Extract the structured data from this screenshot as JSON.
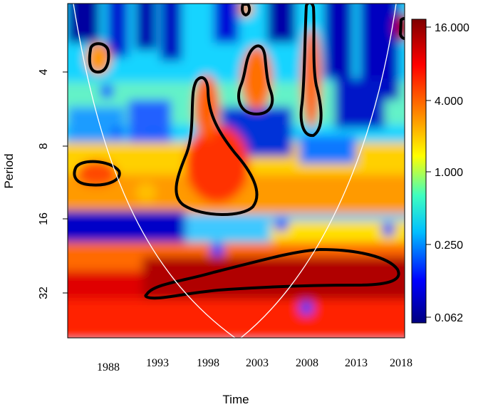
{
  "chart_data": {
    "type": "heatmap",
    "subtype": "wavelet-power-spectrum",
    "xlabel": "Time",
    "ylabel": "Period",
    "x_ticks": [
      "1988",
      "1993",
      "1998",
      "2003",
      "2008",
      "2013",
      "2018"
    ],
    "y_ticks": [
      "4",
      "8",
      "16",
      "32"
    ],
    "xlim": [
      1983,
      2018
    ],
    "period_range": [
      2,
      45
    ],
    "y_scale": "log2",
    "y_axis_reversed": true,
    "colorbar": {
      "ticks": [
        "16.000",
        "4.000",
        "1.000",
        "0.250",
        "0.062"
      ],
      "colormap": [
        "#00007f",
        "#0000ff",
        "#00bfff",
        "#3fffbf",
        "#ffff00",
        "#ff7f00",
        "#ff0000",
        "#7f0000"
      ],
      "range": [
        0.0625,
        16
      ]
    },
    "significance_regions_approx": [
      {
        "time_center": 1987.5,
        "period_center": 3.6
      },
      {
        "time_center": 1986.5,
        "period_center": 10.5
      },
      {
        "time_center": 1998.5,
        "period_center": 9.5
      },
      {
        "time_center": 2002.5,
        "period_center": 5.0
      },
      {
        "time_center": 2008.0,
        "period_center": 4.5
      },
      {
        "time_center": 2007.0,
        "period_center": 28.0
      },
      {
        "time_center": 2001.0,
        "period_center": 2.0
      }
    ],
    "cone_of_influence": true,
    "grid": false
  }
}
